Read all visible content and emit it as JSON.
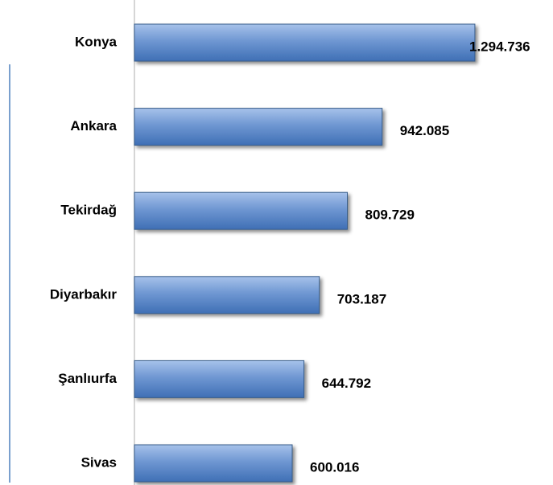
{
  "chart_data": {
    "type": "bar",
    "orientation": "horizontal",
    "categories": [
      "Konya",
      "Ankara",
      "Tekirdağ",
      "Diyarbakır",
      "Şanlıurfa",
      "Sivas"
    ],
    "values": [
      1294736,
      942085,
      809729,
      703187,
      644792,
      600016
    ],
    "value_labels": [
      "1.294.736",
      "942.085",
      "809.729",
      "703.187",
      "644.792",
      "600.016"
    ],
    "color": "#4f81bd",
    "xlim": [
      0,
      1500000
    ]
  }
}
